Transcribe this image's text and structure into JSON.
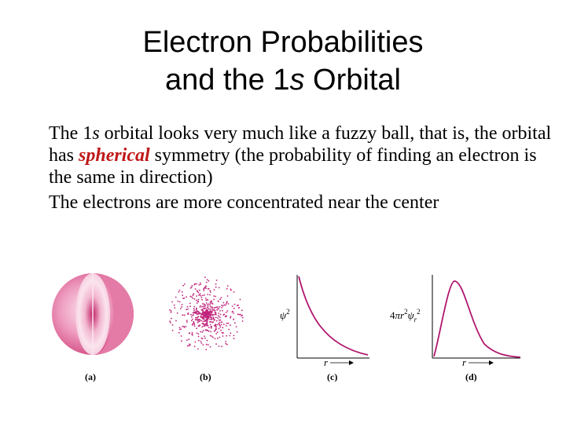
{
  "slide": {
    "title_line1": "Electron Probabilities",
    "title_line2_prefix": "and the 1",
    "title_line2_s": "s",
    "title_line2_suffix": " Orbital",
    "para1": {
      "t1": "The 1",
      "t2": "s",
      "t3": " orbital looks very much like a fuzzy ball, that is, the orbital has ",
      "emph": "spherical",
      "t4": " symmetry (the probability of finding an electron is the same in direction)"
    },
    "para2": "The electrons are more concentrated near the center"
  },
  "figure": {
    "panels": [
      "(a)",
      "(b)",
      "(c)",
      "(d)"
    ],
    "plot_c": {
      "ylabel": "ψ²",
      "xlabel": "r",
      "shape": "exponential-decay"
    },
    "plot_d": {
      "ylabel": "4πr²ψr²",
      "xlabel": "r",
      "shape": "radial-distribution-peak"
    },
    "colors": {
      "curve": "#b0166e",
      "sphere": "#e0669e",
      "dots": "#c0247c"
    }
  }
}
